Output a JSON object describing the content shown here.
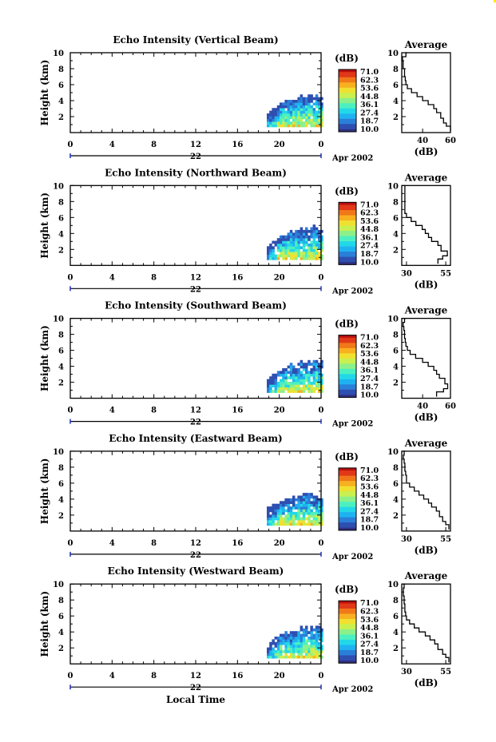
{
  "chart_data": [
    {
      "type": "heatmap",
      "title": "Echo Intensity (Vertical Beam)",
      "ylabel": "Height (km)",
      "x_ticks": [
        "0",
        "4",
        "8",
        "12",
        "16",
        "20",
        "0"
      ],
      "y_ticks": [
        "2",
        "4",
        "6",
        "8",
        "10"
      ],
      "xlim": [
        0,
        24
      ],
      "ylim": [
        0,
        10
      ],
      "date_day": "22",
      "date_label": "Apr 2002",
      "colorbar": {
        "unit": "(dB)",
        "labels": [
          "71.0",
          "62.3",
          "53.6",
          "44.8",
          "36.1",
          "27.4",
          "18.7",
          "10.0"
        ],
        "range": [
          10.0,
          71.0
        ]
      },
      "echo_region": {
        "x_start": 18.8,
        "x_end": 24,
        "top_height": [
          2.4,
          3.3,
          3.7,
          3.9,
          4.2,
          4.3,
          4.6,
          4.9,
          4.8,
          4.8,
          4.7
        ]
      },
      "profile": {
        "title": "Average",
        "xlabel": "(dB)",
        "x_ticks": [
          "40",
          "60"
        ],
        "xlim": [
          25,
          60
        ],
        "y_ticks": [
          "2",
          "4",
          "6",
          "8",
          "10"
        ],
        "ylim": [
          0,
          10
        ],
        "height": [
          0.2,
          0.8,
          1.2,
          1.8,
          2.5,
          3.0,
          3.5,
          4.0,
          4.5,
          5.0,
          5.5,
          6.0,
          6.5,
          7.0,
          7.5,
          8.0,
          8.5,
          9.0,
          9.5,
          10.0
        ],
        "value": [
          60,
          57,
          55,
          53,
          50,
          48,
          44,
          40,
          36,
          32,
          29,
          28,
          27.5,
          27,
          27,
          26,
          26,
          25.5,
          28,
          29
        ]
      }
    },
    {
      "type": "heatmap",
      "title": "Echo Intensity (Northward Beam)",
      "ylabel": "Height (km)",
      "x_ticks": [
        "0",
        "4",
        "8",
        "12",
        "16",
        "20",
        "0"
      ],
      "y_ticks": [
        "2",
        "4",
        "6",
        "8",
        "10"
      ],
      "xlim": [
        0,
        24
      ],
      "ylim": [
        0,
        10
      ],
      "date_day": "22",
      "date_label": "Apr 2002",
      "colorbar": {
        "unit": "(dB)",
        "labels": [
          "71.0",
          "62.3",
          "53.6",
          "44.8",
          "36.1",
          "27.4",
          "18.7",
          "10.0"
        ],
        "range": [
          10.0,
          71.0
        ]
      },
      "echo_region": {
        "x_start": 18.8,
        "x_end": 24,
        "top_height": [
          2.6,
          3.4,
          3.8,
          4.0,
          4.3,
          4.4,
          4.7,
          4.9,
          4.8,
          4.9,
          4.7
        ]
      },
      "profile": {
        "title": "Average",
        "xlabel": "(dB)",
        "x_ticks": [
          "30",
          "55"
        ],
        "xlim": [
          27,
          58
        ],
        "y_ticks": [
          "2",
          "4",
          "6",
          "8",
          "10"
        ],
        "ylim": [
          0,
          10
        ],
        "height": [
          0.2,
          0.8,
          1.2,
          1.8,
          2.5,
          3.0,
          3.5,
          4.0,
          4.5,
          5.0,
          5.5,
          6.0,
          6.5,
          7.0,
          7.5,
          8.0,
          8.5,
          9.0,
          9.5,
          10.0
        ],
        "value": [
          50,
          53,
          56,
          52,
          50,
          46,
          44,
          42,
          40,
          36,
          33,
          30,
          29,
          29,
          29,
          29,
          29,
          29,
          29,
          29
        ]
      }
    },
    {
      "type": "heatmap",
      "title": "Echo Intensity (Southward Beam)",
      "ylabel": "Height (km)",
      "x_ticks": [
        "0",
        "4",
        "8",
        "12",
        "16",
        "20",
        "0"
      ],
      "y_ticks": [
        "2",
        "4",
        "6",
        "8",
        "10"
      ],
      "xlim": [
        0,
        24
      ],
      "ylim": [
        0,
        10
      ],
      "date_day": "22",
      "date_label": "Apr 2002",
      "colorbar": {
        "unit": "(dB)",
        "labels": [
          "71.0",
          "62.3",
          "53.6",
          "44.8",
          "36.1",
          "27.4",
          "18.7",
          "10.0"
        ],
        "range": [
          10.0,
          71.0
        ]
      },
      "echo_region": {
        "x_start": 18.8,
        "x_end": 24,
        "top_height": [
          2.5,
          3.3,
          3.6,
          3.9,
          4.2,
          4.3,
          4.5,
          4.8,
          4.7,
          4.7,
          4.6
        ]
      },
      "profile": {
        "title": "Average",
        "xlabel": "(dB)",
        "x_ticks": [
          "40",
          "60"
        ],
        "xlim": [
          25,
          60
        ],
        "y_ticks": [
          "2",
          "4",
          "6",
          "8",
          "10"
        ],
        "ylim": [
          0,
          10
        ],
        "height": [
          0.2,
          0.8,
          1.2,
          1.8,
          2.5,
          3.0,
          3.5,
          4.0,
          4.5,
          5.0,
          5.5,
          6.0,
          6.5,
          7.0,
          7.5,
          8.0,
          8.5,
          9.0,
          9.5,
          10.0
        ],
        "value": [
          50,
          55,
          58,
          56,
          52,
          50,
          48,
          44,
          40,
          35,
          31,
          29,
          28,
          27.5,
          27,
          27,
          26.5,
          26,
          27,
          28
        ]
      }
    },
    {
      "type": "heatmap",
      "title": "Echo Intensity (Eastward Beam)",
      "ylabel": "Height (km)",
      "x_ticks": [
        "0",
        "4",
        "8",
        "12",
        "16",
        "20",
        "0"
      ],
      "y_ticks": [
        "2",
        "4",
        "6",
        "8",
        "10"
      ],
      "xlim": [
        0,
        24
      ],
      "ylim": [
        0,
        10
      ],
      "date_day": "22",
      "date_label": "Apr 2002",
      "colorbar": {
        "unit": "(dB)",
        "labels": [
          "71.0",
          "62.3",
          "53.6",
          "44.8",
          "36.1",
          "27.4",
          "18.7",
          "10.0"
        ],
        "range": [
          10.0,
          71.0
        ]
      },
      "echo_region": {
        "x_start": 18.8,
        "x_end": 24,
        "top_height": [
          2.8,
          3.4,
          3.9,
          4.1,
          4.4,
          4.5,
          4.8,
          5.0,
          4.9,
          4.9,
          4.8
        ]
      },
      "profile": {
        "title": "Average",
        "xlabel": "(dB)",
        "x_ticks": [
          "30",
          "55"
        ],
        "xlim": [
          27,
          58
        ],
        "y_ticks": [
          "2",
          "4",
          "6",
          "8",
          "10"
        ],
        "ylim": [
          0,
          10
        ],
        "height": [
          0.2,
          0.8,
          1.2,
          1.8,
          2.5,
          3.0,
          3.5,
          4.0,
          4.5,
          5.0,
          5.5,
          6.0,
          6.5,
          7.0,
          7.5,
          8.0,
          8.5,
          9.0,
          9.5,
          10.0
        ],
        "value": [
          57,
          55,
          53,
          51,
          49,
          46,
          44,
          41,
          38,
          35,
          32,
          30,
          30,
          29.5,
          29,
          29,
          28.5,
          28,
          28.5,
          29
        ]
      }
    },
    {
      "type": "heatmap",
      "title": "Echo Intensity (Westward Beam)",
      "ylabel": "Height (km)",
      "x_ticks": [
        "0",
        "4",
        "8",
        "12",
        "16",
        "20",
        "0"
      ],
      "y_ticks": [
        "2",
        "4",
        "6",
        "8",
        "10"
      ],
      "xlim": [
        0,
        24
      ],
      "ylim": [
        0,
        10
      ],
      "date_day": "22",
      "date_label": "Apr 2002",
      "x_title": "Local Time",
      "colorbar": {
        "unit": "(dB)",
        "labels": [
          "71.0",
          "62.3",
          "53.6",
          "44.8",
          "36.1",
          "27.4",
          "18.7",
          "10.0"
        ],
        "range": [
          10.0,
          71.0
        ]
      },
      "echo_region": {
        "x_start": 18.8,
        "x_end": 24,
        "top_height": [
          2.5,
          3.2,
          3.7,
          3.9,
          4.2,
          4.3,
          4.6,
          4.9,
          4.8,
          4.8,
          4.7
        ]
      },
      "profile": {
        "title": "Average",
        "xlabel": "(dB)",
        "x_ticks": [
          "30",
          "55"
        ],
        "xlim": [
          27,
          58
        ],
        "y_ticks": [
          "2",
          "4",
          "6",
          "8",
          "10"
        ],
        "ylim": [
          0,
          10
        ],
        "height": [
          0.2,
          0.8,
          1.2,
          1.8,
          2.5,
          3.0,
          3.5,
          4.0,
          4.5,
          5.0,
          5.5,
          6.0,
          6.5,
          7.0,
          7.5,
          8.0,
          8.5,
          9.0,
          9.5,
          10.0
        ],
        "value": [
          57,
          55,
          53,
          50,
          48,
          45,
          42,
          38,
          35,
          32,
          30,
          29.5,
          29,
          29,
          28.5,
          28.5,
          28,
          28,
          28.5,
          29
        ]
      }
    }
  ],
  "colorscale": [
    "#303080",
    "#2e4fb0",
    "#2a7fd8",
    "#1fb2f0",
    "#22d8e8",
    "#4cf0c0",
    "#8cf08a",
    "#c8f050",
    "#f0e030",
    "#f8b020",
    "#f07818",
    "#e03818",
    "#b81010"
  ]
}
